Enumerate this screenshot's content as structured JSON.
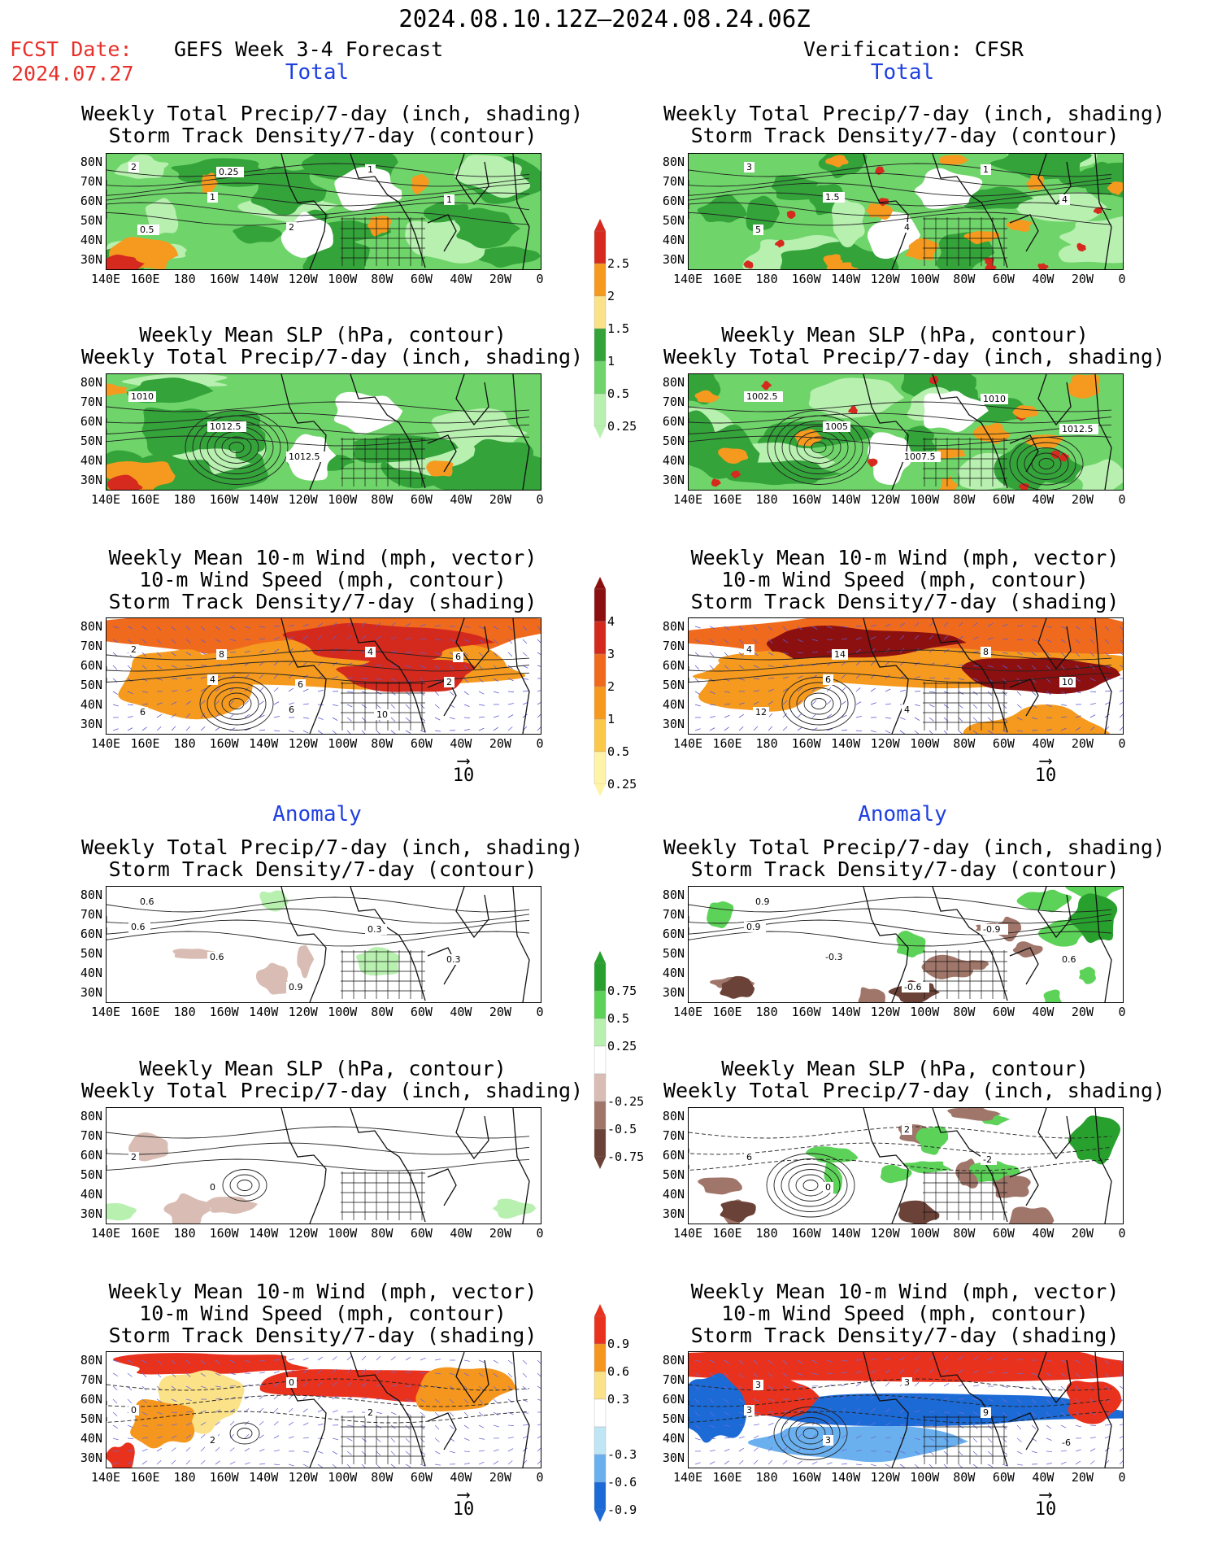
{
  "header": {
    "date_range": "2024.08.10.12Z–2024.08.24.06Z",
    "fcst_date_label": "FCST Date:",
    "fcst_date_value": "2024.07.27",
    "model_title": "GEFS Week 3-4 Forecast",
    "verification_title": "Verification: CFSR",
    "total_label": "Total",
    "anomaly_label": "Anomaly"
  },
  "titles": {
    "precip_track": [
      "Weekly Total Precip/7-day (inch, shading)",
      "Storm Track Density/7-day (contour)"
    ],
    "slp_precip": [
      "Weekly Mean SLP (hPa, contour)",
      "Weekly Total Precip/7-day (inch, shading)"
    ],
    "wind": [
      "Weekly Mean 10-m Wind (mph, vector)",
      "10-m Wind Speed (mph, contour)",
      "Storm Track Density/7-day (shading)"
    ]
  },
  "axes": {
    "lat_ticks": [
      "80N",
      "70N",
      "60N",
      "50N",
      "40N",
      "30N"
    ],
    "lon_ticks": [
      "140E",
      "160E",
      "180",
      "160W",
      "140W",
      "120W",
      "100W",
      "80W",
      "60W",
      "40W",
      "20W",
      "0"
    ]
  },
  "vector_ref": "10",
  "colorbars": {
    "precip_total": {
      "labels": [
        "2.5",
        "2",
        "1.5",
        "1",
        "0.5",
        "0.25"
      ],
      "colors": [
        "#d62a1e",
        "#f59a1e",
        "#fbe187",
        "#33a33a",
        "#6fd56a",
        "#b8f0b0"
      ]
    },
    "track_total": {
      "labels": [
        "4",
        "3",
        "2",
        "1",
        "0.5",
        "0.25"
      ],
      "colors": [
        "#8c1010",
        "#d42a1e",
        "#f06a1e",
        "#f59a1e",
        "#fbc84a",
        "#fff3a8"
      ]
    },
    "precip_anom": {
      "labels": [
        "0.75",
        "0.5",
        "0.25",
        "-0.25",
        "-0.5",
        "-0.75"
      ],
      "colors": [
        "#28a02e",
        "#5cd258",
        "#b8f0b0",
        "#ffffff",
        "#d9bdb4",
        "#a0766a",
        "#6b4238"
      ]
    },
    "track_anom": {
      "labels": [
        "0.9",
        "0.6",
        "0.3",
        "-0.3",
        "-0.6",
        "-0.9"
      ],
      "colors": [
        "#e8321e",
        "#f5961e",
        "#fbe187",
        "#ffffff",
        "#bfe6f5",
        "#6ab0ef",
        "#1c6ad6"
      ]
    }
  },
  "panel_labels": {
    "l1": [
      "2",
      "1",
      "2",
      "1",
      "1",
      "0.5",
      "0.25"
    ],
    "r1": [
      "3",
      "1.5",
      "4",
      "1",
      "4",
      "5"
    ],
    "l2": [
      "1010",
      "1012.5",
      "1012.5"
    ],
    "r2": [
      "1002.5",
      "1005",
      "1007.5",
      "1010",
      "1012.5"
    ],
    "l3": [
      "2",
      "4",
      "6",
      "4",
      "2",
      "6",
      "8",
      "6",
      "10",
      "6"
    ],
    "r3": [
      "4",
      "6",
      "4",
      "8",
      "10",
      "12",
      "14"
    ],
    "l4": [
      "0.6",
      "0.6",
      "0.9",
      "0.3",
      "0.3",
      "0.6"
    ],
    "r4": [
      "0.9",
      "-0.3",
      "-0.6",
      "-0.9",
      "0.6",
      "0.9"
    ],
    "l5": [
      "2",
      "0"
    ],
    "r5": [
      "6",
      "0",
      "2",
      "-2"
    ],
    "l6": [
      "0",
      "2",
      "0",
      "2"
    ],
    "r6": [
      "3",
      "3",
      "3",
      "9",
      "-6",
      "3"
    ]
  }
}
